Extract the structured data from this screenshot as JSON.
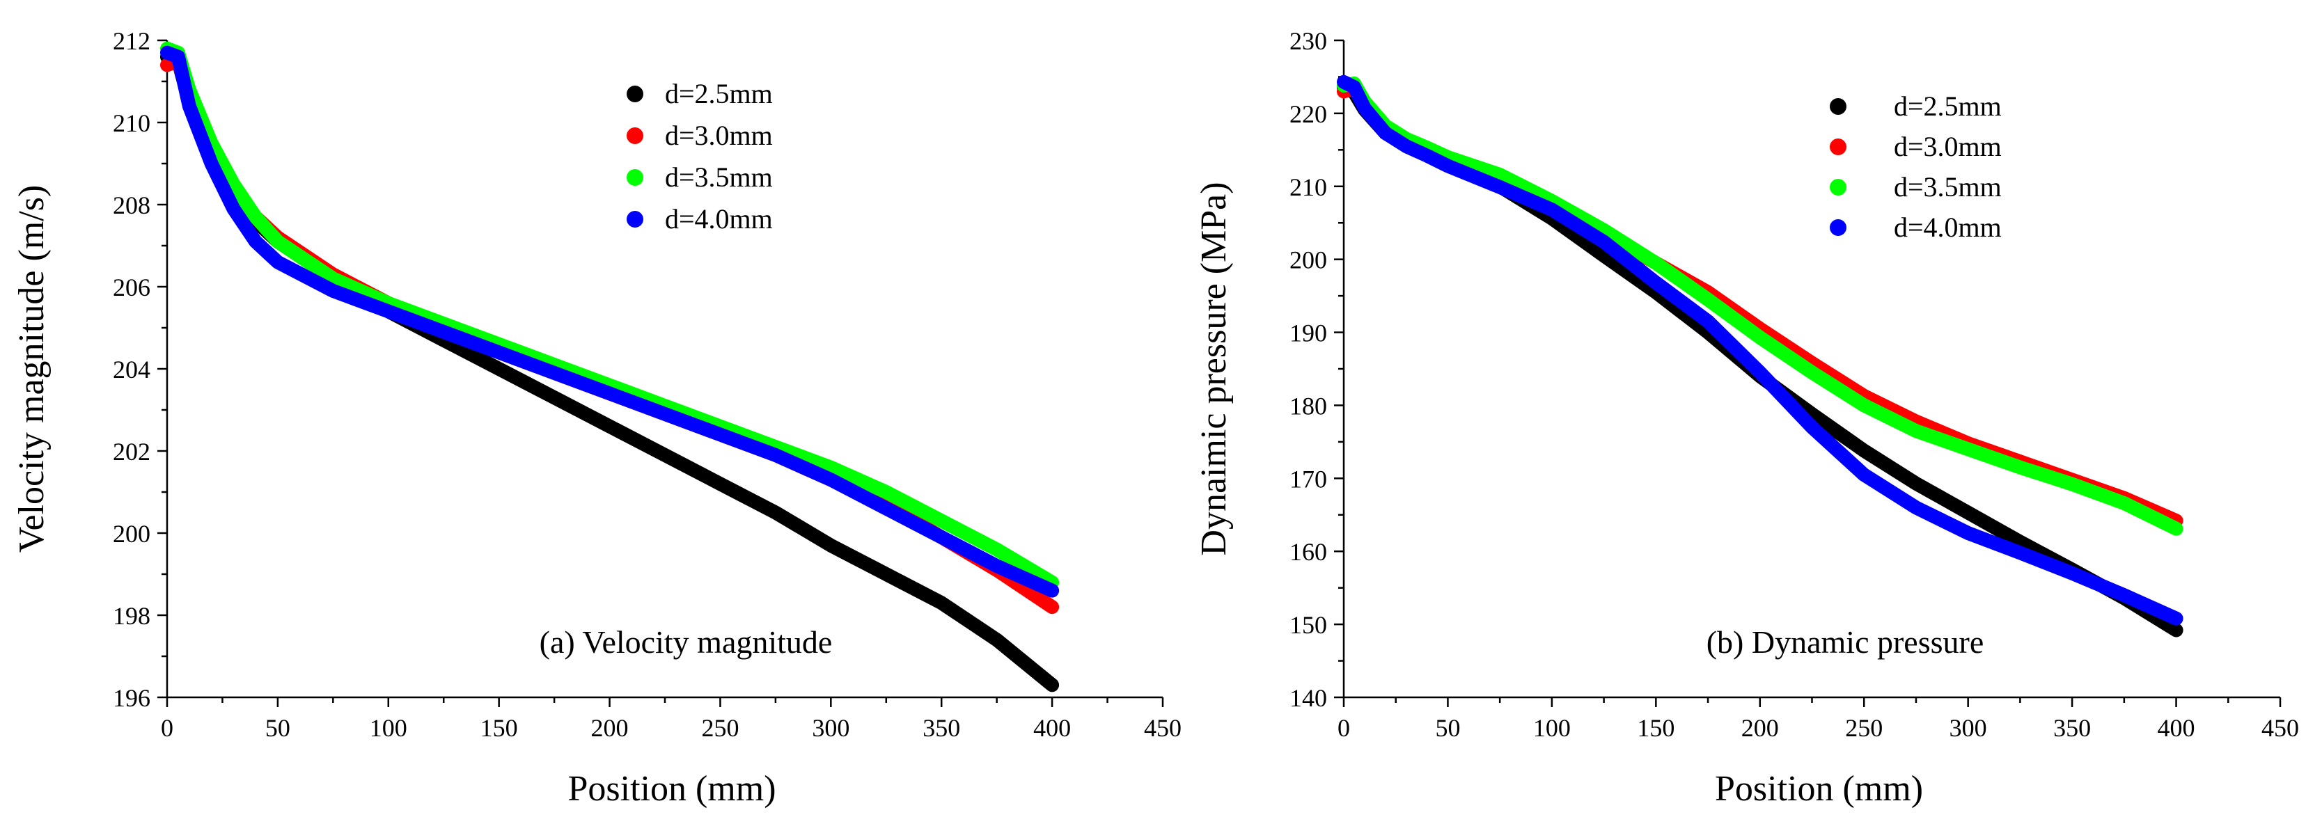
{
  "chart_data": [
    {
      "type": "line",
      "caption": "(a) Velocity magnitude",
      "xlabel": "Position (mm)",
      "ylabel": "Velocity magnitude (m/s)",
      "xlim": [
        0,
        450
      ],
      "ylim": [
        196,
        212
      ],
      "xticks": [
        0,
        50,
        100,
        150,
        200,
        250,
        300,
        350,
        400,
        450
      ],
      "yticks": [
        196,
        198,
        200,
        202,
        204,
        206,
        208,
        210,
        212
      ],
      "legend_position": "top-right",
      "x": [
        0,
        5,
        10,
        20,
        30,
        40,
        50,
        75,
        100,
        125,
        150,
        175,
        200,
        225,
        250,
        275,
        300,
        325,
        350,
        375,
        400
      ],
      "series": [
        {
          "name": "d=2.5mm",
          "color": "#000000",
          "values": [
            211.6,
            211.5,
            210.5,
            209.2,
            208.3,
            207.6,
            207.1,
            206.2,
            205.4,
            204.7,
            204.0,
            203.3,
            202.6,
            201.9,
            201.2,
            200.5,
            199.7,
            199.0,
            198.3,
            197.4,
            196.3
          ]
        },
        {
          "name": "d=3.0mm",
          "color": "#ff0000",
          "values": [
            211.4,
            211.5,
            210.6,
            209.3,
            208.3,
            207.7,
            207.2,
            206.3,
            205.6,
            205.0,
            204.4,
            203.9,
            203.4,
            202.9,
            202.4,
            201.9,
            201.3,
            200.7,
            199.9,
            199.1,
            198.2
          ]
        },
        {
          "name": "d=3.5mm",
          "color": "#00ff00",
          "values": [
            211.8,
            211.7,
            210.8,
            209.5,
            208.5,
            207.7,
            207.1,
            206.2,
            205.6,
            205.1,
            204.6,
            204.1,
            203.6,
            203.1,
            202.6,
            202.1,
            201.6,
            201.0,
            200.3,
            199.6,
            198.8
          ]
        },
        {
          "name": "d=4.0mm",
          "color": "#0000ff",
          "values": [
            211.7,
            211.6,
            210.4,
            209.0,
            207.9,
            207.1,
            206.6,
            205.9,
            205.4,
            204.9,
            204.4,
            203.9,
            203.4,
            202.9,
            202.4,
            201.9,
            201.3,
            200.6,
            199.9,
            199.2,
            198.6
          ]
        }
      ]
    },
    {
      "type": "line",
      "caption": "(b) Dynamic pressure",
      "xlabel": "Position (mm)",
      "ylabel": "Dynaimic pressure (MPa)",
      "xlim": [
        0,
        450
      ],
      "ylim": [
        140,
        230
      ],
      "xticks": [
        0,
        50,
        100,
        150,
        200,
        250,
        300,
        350,
        400,
        450
      ],
      "yticks": [
        140,
        150,
        160,
        170,
        180,
        190,
        200,
        210,
        220,
        230
      ],
      "legend_position": "top-right",
      "x": [
        0,
        5,
        10,
        20,
        30,
        40,
        50,
        75,
        100,
        125,
        150,
        175,
        200,
        225,
        250,
        275,
        300,
        325,
        350,
        375,
        400
      ],
      "series": [
        {
          "name": "d=2.5mm",
          "color": "#000000",
          "values": [
            223.5,
            222.9,
            220.5,
            217.3,
            215.6,
            214.5,
            213.3,
            210.0,
            205.6,
            200.5,
            195.5,
            190.0,
            184.0,
            178.8,
            173.8,
            169.3,
            165.3,
            161.3,
            157.5,
            153.6,
            149.2
          ]
        },
        {
          "name": "d=3.0mm",
          "color": "#ff0000",
          "values": [
            223.0,
            223.4,
            221.0,
            217.9,
            216.3,
            215.1,
            213.8,
            211.0,
            207.4,
            203.5,
            199.5,
            195.5,
            190.5,
            185.8,
            181.3,
            177.8,
            174.8,
            172.3,
            169.8,
            167.3,
            164.2
          ]
        },
        {
          "name": "d=3.5mm",
          "color": "#00ff00",
          "values": [
            223.8,
            224.1,
            221.6,
            218.3,
            216.5,
            215.3,
            214.0,
            211.6,
            208.0,
            204.0,
            199.5,
            194.5,
            189.3,
            184.5,
            180.0,
            176.5,
            174.0,
            171.5,
            169.2,
            166.6,
            163.1
          ]
        },
        {
          "name": "d=4.0mm",
          "color": "#0000ff",
          "values": [
            224.3,
            223.6,
            220.7,
            217.3,
            215.5,
            214.2,
            212.8,
            209.9,
            206.8,
            202.4,
            196.8,
            191.5,
            184.5,
            177.0,
            170.5,
            166.0,
            162.5,
            159.8,
            157.0,
            154.0,
            150.8
          ]
        }
      ]
    }
  ]
}
